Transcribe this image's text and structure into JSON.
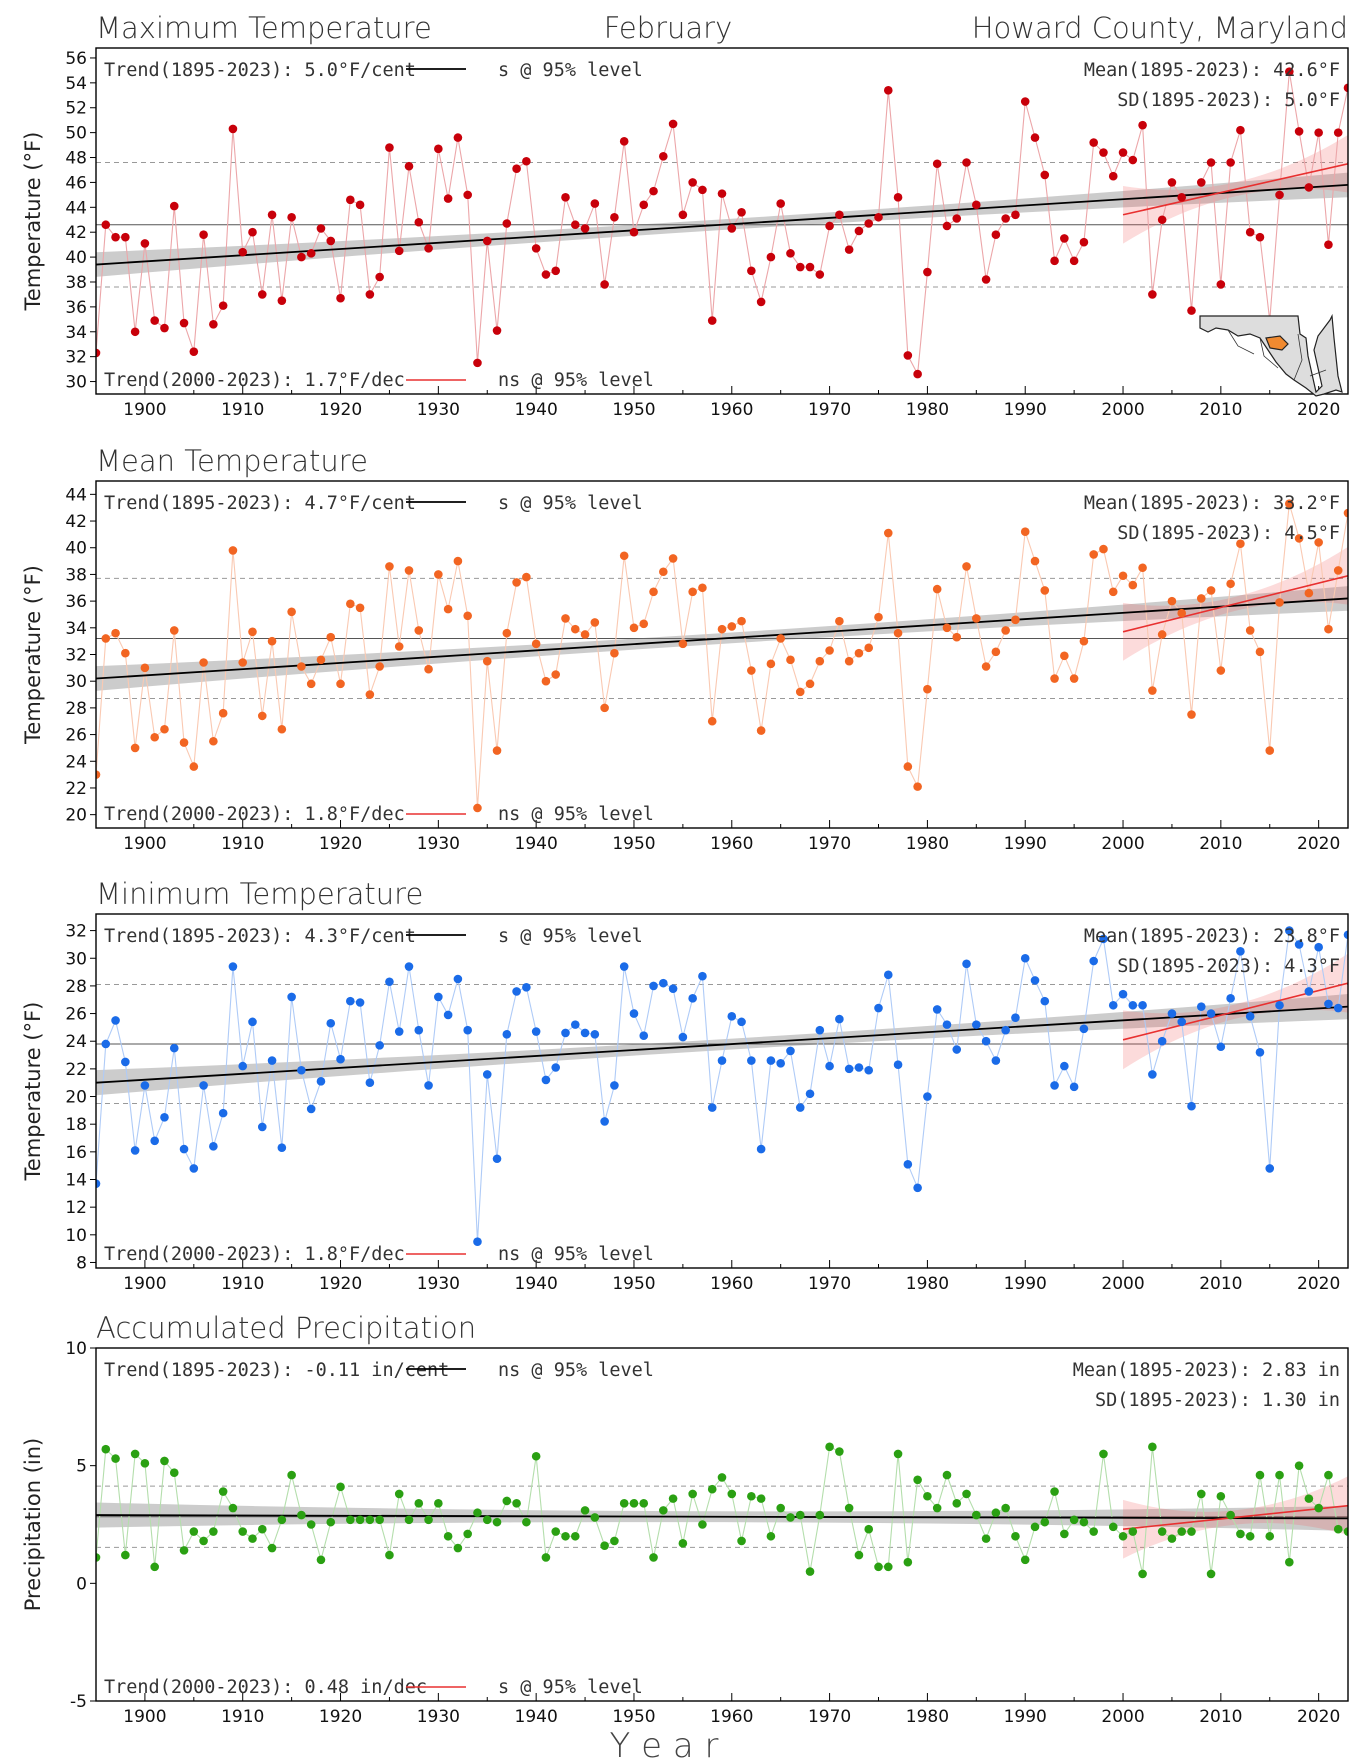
{
  "header": {
    "left": "Maximum Temperature",
    "center": "February",
    "right": "Howard County, Maryland"
  },
  "xlabel": "Y e a r",
  "colors": {
    "max": "#c8000a",
    "mean": "#f26522",
    "min": "#1a6be8",
    "precip": "#2aa012",
    "trend_long": "#000000",
    "trend_recent": "#e83030"
  },
  "map_icon": "maryland-map-icon",
  "chart_data": [
    {
      "type": "line",
      "id": "tmax",
      "title": "Maximum Temperature",
      "ylabel": "Temperature (°F)",
      "ylim": [
        29,
        56.8
      ],
      "yticks": [
        30,
        32,
        34,
        36,
        38,
        40,
        42,
        44,
        46,
        48,
        50,
        52,
        54,
        56
      ],
      "xlim": [
        1895,
        2023
      ],
      "xticks": [
        1900,
        1910,
        1920,
        1930,
        1940,
        1950,
        1960,
        1970,
        1980,
        1990,
        2000,
        2010,
        2020
      ],
      "mean": 42.6,
      "sd": 5.0,
      "trend_long": {
        "start": 39.4,
        "end": 45.8,
        "label": "Trend(1895-2023):  5.0°F/cent",
        "sig": "s @ 95% level"
      },
      "trend_recent": {
        "start": 43.4,
        "end": 47.5,
        "label": "Trend(2000-2023):  1.7°F/dec",
        "sig": "ns @ 95% level"
      },
      "mean_label": "Mean(1895-2023): 42.6°F",
      "sd_label": "SD(1895-2023): 5.0°F",
      "x_start": 1895,
      "values": [
        32.3,
        42.6,
        41.6,
        41.6,
        34.0,
        41.1,
        34.9,
        34.3,
        44.1,
        34.7,
        32.4,
        41.8,
        34.6,
        36.1,
        50.3,
        40.4,
        42.0,
        37.0,
        43.4,
        36.5,
        43.2,
        40.0,
        40.3,
        42.3,
        41.3,
        36.7,
        44.6,
        44.2,
        37.0,
        38.4,
        48.8,
        40.5,
        47.3,
        42.8,
        40.7,
        48.7,
        44.7,
        49.6,
        45.0,
        31.5,
        41.3,
        34.1,
        42.7,
        47.1,
        47.7,
        40.7,
        38.6,
        38.9,
        44.8,
        42.6,
        42.3,
        44.3,
        37.8,
        43.2,
        49.3,
        42.0,
        44.2,
        45.3,
        48.1,
        50.7,
        43.4,
        46.0,
        45.4,
        34.9,
        45.1,
        42.3,
        43.6,
        38.9,
        36.4,
        40.0,
        44.3,
        40.3,
        39.2,
        39.2,
        38.6,
        42.5,
        43.4,
        40.6,
        42.1,
        42.7,
        43.2,
        53.4,
        44.8,
        32.1,
        30.6,
        38.8,
        47.5,
        42.5,
        43.1,
        47.6,
        44.2,
        38.2,
        41.8,
        43.1,
        43.4,
        52.5,
        49.6,
        46.6,
        39.7,
        41.5,
        39.7,
        41.2,
        49.2,
        48.4,
        46.5,
        48.4,
        47.8,
        50.6,
        37.0,
        43.0,
        46.0,
        44.8,
        35.7,
        46.0,
        47.6,
        37.8,
        47.6,
        50.2,
        42.0,
        41.6,
        34.9,
        45.0,
        54.9,
        50.1,
        45.6,
        50.0,
        41.0,
        50.0,
        53.6
      ]
    },
    {
      "type": "line",
      "id": "tmean",
      "title": "Mean Temperature",
      "ylabel": "Temperature (°F)",
      "ylim": [
        19,
        45
      ],
      "yticks": [
        20,
        22,
        24,
        26,
        28,
        30,
        32,
        34,
        36,
        38,
        40,
        42,
        44
      ],
      "xlim": [
        1895,
        2023
      ],
      "xticks": [
        1900,
        1910,
        1920,
        1930,
        1940,
        1950,
        1960,
        1970,
        1980,
        1990,
        2000,
        2010,
        2020
      ],
      "mean": 33.2,
      "sd": 4.5,
      "trend_long": {
        "start": 30.2,
        "end": 36.2,
        "label": "Trend(1895-2023):  4.7°F/cent",
        "sig": "s @ 95% level"
      },
      "trend_recent": {
        "start": 33.7,
        "end": 37.9,
        "label": "Trend(2000-2023):  1.8°F/dec",
        "sig": "ns @ 95% level"
      },
      "mean_label": "Mean(1895-2023): 33.2°F",
      "sd_label": "SD(1895-2023): 4.5°F",
      "x_start": 1895,
      "values": [
        23.0,
        33.2,
        33.6,
        32.1,
        25.0,
        31.0,
        25.8,
        26.4,
        33.8,
        25.4,
        23.6,
        31.4,
        25.5,
        27.6,
        39.8,
        31.4,
        33.7,
        27.4,
        33.0,
        26.4,
        35.2,
        31.1,
        29.8,
        31.6,
        33.3,
        29.8,
        35.8,
        35.5,
        29.0,
        31.1,
        38.6,
        32.6,
        38.3,
        33.8,
        30.9,
        38.0,
        35.4,
        39.0,
        34.9,
        20.5,
        31.5,
        24.8,
        33.6,
        37.4,
        37.8,
        32.8,
        30.0,
        30.5,
        34.7,
        33.9,
        33.5,
        34.4,
        28.0,
        32.1,
        39.4,
        34.0,
        34.3,
        36.7,
        38.2,
        39.2,
        32.8,
        36.7,
        37.0,
        27.0,
        33.9,
        34.1,
        34.5,
        30.8,
        26.3,
        31.3,
        33.2,
        31.6,
        29.2,
        29.8,
        31.5,
        32.3,
        34.5,
        31.5,
        32.1,
        32.5,
        34.8,
        41.1,
        33.6,
        23.6,
        22.1,
        29.4,
        36.9,
        34.0,
        33.3,
        38.6,
        34.7,
        31.1,
        32.2,
        33.8,
        34.6,
        41.2,
        39.0,
        36.8,
        30.2,
        31.9,
        30.2,
        33.0,
        39.5,
        39.9,
        36.7,
        37.9,
        37.2,
        38.5,
        29.3,
        33.5,
        36.0,
        35.1,
        27.5,
        36.2,
        36.8,
        30.8,
        37.3,
        40.3,
        33.8,
        32.2,
        24.8,
        35.9,
        43.3,
        40.7,
        36.6,
        40.4,
        33.9,
        38.3,
        42.6
      ]
    },
    {
      "type": "line",
      "id": "tmin",
      "title": "Minimum Temperature",
      "ylabel": "Temperature (°F)",
      "ylim": [
        7.6,
        33.2
      ],
      "yticks": [
        8,
        10,
        12,
        14,
        16,
        18,
        20,
        22,
        24,
        26,
        28,
        30,
        32
      ],
      "xlim": [
        1895,
        2023
      ],
      "xticks": [
        1900,
        1910,
        1920,
        1930,
        1940,
        1950,
        1960,
        1970,
        1980,
        1990,
        2000,
        2010,
        2020
      ],
      "mean": 23.8,
      "sd": 4.3,
      "trend_long": {
        "start": 21.0,
        "end": 26.5,
        "label": "Trend(1895-2023):  4.3°F/cent",
        "sig": "s @ 95% level"
      },
      "trend_recent": {
        "start": 24.1,
        "end": 28.2,
        "label": "Trend(2000-2023):  1.8°F/dec",
        "sig": "ns @ 95% level"
      },
      "mean_label": "Mean(1895-2023): 23.8°F",
      "sd_label": "SD(1895-2023): 4.3°F",
      "x_start": 1895,
      "values": [
        13.7,
        23.8,
        25.5,
        22.5,
        16.1,
        20.8,
        16.8,
        18.5,
        23.5,
        16.2,
        14.8,
        20.8,
        16.4,
        18.8,
        29.4,
        22.2,
        25.4,
        17.8,
        22.6,
        16.3,
        27.2,
        21.9,
        19.1,
        21.1,
        25.3,
        22.7,
        26.9,
        26.8,
        21.0,
        23.7,
        28.3,
        24.7,
        29.4,
        24.8,
        20.8,
        27.2,
        25.9,
        28.5,
        24.8,
        9.5,
        21.6,
        15.5,
        24.5,
        27.6,
        27.9,
        24.7,
        21.2,
        22.1,
        24.6,
        25.2,
        24.6,
        24.5,
        18.2,
        20.8,
        29.4,
        26.0,
        24.4,
        28.0,
        28.2,
        27.8,
        24.3,
        27.1,
        28.7,
        19.2,
        22.6,
        25.8,
        25.4,
        22.6,
        16.2,
        22.6,
        22.4,
        23.3,
        19.2,
        20.2,
        24.8,
        22.2,
        25.6,
        22.0,
        22.1,
        21.9,
        26.4,
        28.8,
        22.3,
        15.1,
        13.4,
        20.0,
        26.3,
        25.2,
        23.4,
        29.6,
        25.2,
        24.0,
        22.6,
        24.8,
        25.7,
        30.0,
        28.4,
        26.9,
        20.8,
        22.2,
        20.7,
        24.9,
        29.8,
        31.4,
        26.6,
        27.4,
        26.6,
        26.6,
        21.6,
        24.0,
        26.0,
        25.4,
        19.3,
        26.5,
        26.0,
        23.6,
        27.1,
        30.5,
        25.8,
        23.2,
        14.8,
        26.6,
        32.0,
        31.0,
        27.6,
        30.8,
        26.7,
        26.4,
        31.7
      ]
    },
    {
      "type": "line",
      "id": "pcpn",
      "title": "Accumulated Precipitation",
      "ylabel": "Precipitation (in)",
      "ylim": [
        -5,
        10
      ],
      "yticks": [
        -5,
        0,
        5,
        10
      ],
      "xlim": [
        1895,
        2023
      ],
      "xticks": [
        1900,
        1910,
        1920,
        1930,
        1940,
        1950,
        1960,
        1970,
        1980,
        1990,
        2000,
        2010,
        2020
      ],
      "mean": 2.83,
      "sd": 1.3,
      "trend_long": {
        "start": 2.9,
        "end": 2.76,
        "label": "Trend(1895-2023): -0.11 in/cent",
        "sig": "ns @ 95% level"
      },
      "trend_recent": {
        "start": 2.3,
        "end": 3.3,
        "label": "Trend(2000-2023):  0.48 in/dec",
        "sig": "s @ 95% level"
      },
      "mean_label": "Mean(1895-2023): 2.83 in",
      "sd_label": "SD(1895-2023): 1.30 in",
      "x_start": 1895,
      "values": [
        1.1,
        5.7,
        5.3,
        1.2,
        5.5,
        5.1,
        0.7,
        5.2,
        4.7,
        1.4,
        2.2,
        1.8,
        2.2,
        3.9,
        3.2,
        2.2,
        1.9,
        2.3,
        1.5,
        2.7,
        4.6,
        2.9,
        2.5,
        1.0,
        2.6,
        4.1,
        2.7,
        2.7,
        2.7,
        2.7,
        1.2,
        3.8,
        2.7,
        3.4,
        2.7,
        3.4,
        2.0,
        1.5,
        2.1,
        3.0,
        2.7,
        2.6,
        3.5,
        3.4,
        2.6,
        5.4,
        1.1,
        2.2,
        2.0,
        2.0,
        3.1,
        2.8,
        1.6,
        1.8,
        3.4,
        3.4,
        3.4,
        1.1,
        3.1,
        3.6,
        1.7,
        3.8,
        2.5,
        4.0,
        4.5,
        3.8,
        1.8,
        3.7,
        3.6,
        2.0,
        3.2,
        2.8,
        2.9,
        0.5,
        2.9,
        5.8,
        5.6,
        3.2,
        1.2,
        2.3,
        0.7,
        0.7,
        5.5,
        0.9,
        4.4,
        3.7,
        3.2,
        4.6,
        3.4,
        3.8,
        2.9,
        1.9,
        3.0,
        3.2,
        2.0,
        1.0,
        2.4,
        2.6,
        3.9,
        2.1,
        2.7,
        2.6,
        2.2,
        5.5,
        2.4,
        2.0,
        2.2,
        0.4,
        5.8,
        2.2,
        1.9,
        2.2,
        2.2,
        3.8,
        0.4,
        3.7,
        2.9,
        2.1,
        2.0,
        4.6,
        2.0,
        4.6,
        0.9,
        5.0,
        3.6,
        3.2,
        4.6,
        2.3,
        2.2
      ]
    }
  ]
}
